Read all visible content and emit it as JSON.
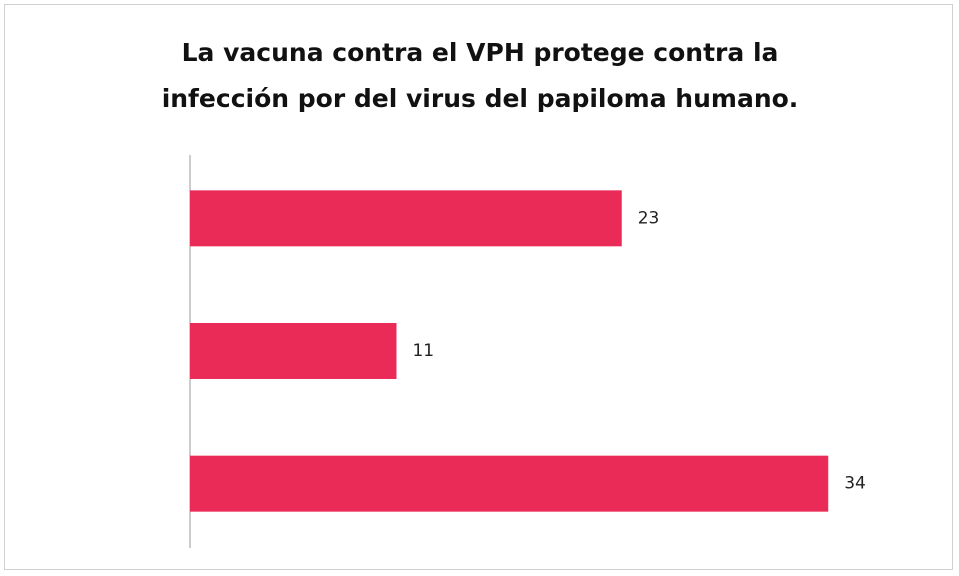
{
  "chart_data": {
    "type": "bar",
    "orientation": "horizontal",
    "title": "La vacuna contra el VPH protege contra la infección por del virus del papiloma humano.",
    "categories": [
      null,
      null,
      null
    ],
    "values": [
      23,
      11,
      34
    ],
    "color": "#ea2b57",
    "xlim": [
      0,
      35
    ]
  }
}
